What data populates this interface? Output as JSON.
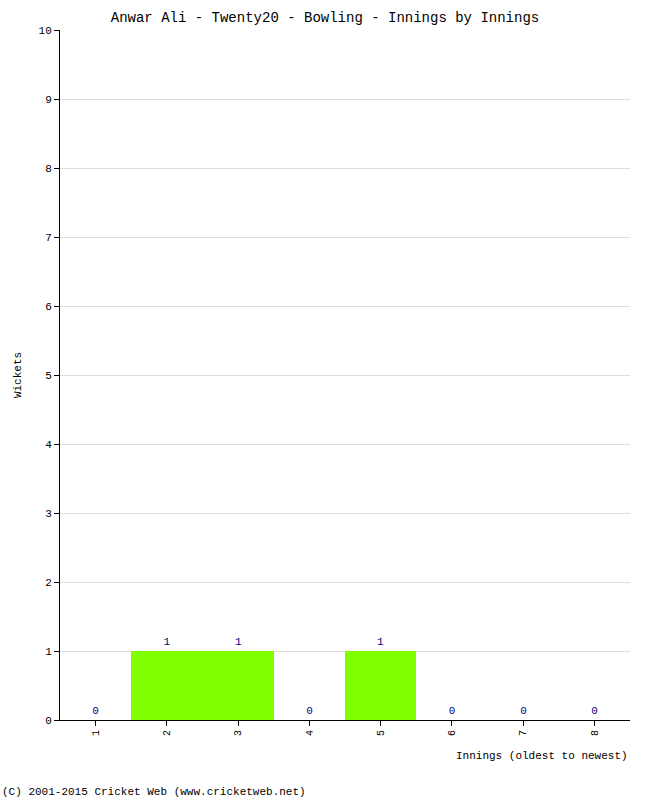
{
  "chart_data": {
    "type": "bar",
    "title": "Anwar Ali - Twenty20 - Bowling - Innings by Innings",
    "x_label": "Innings (oldest to newest)",
    "y_label": "Wickets",
    "categories": [
      "1",
      "2",
      "3",
      "4",
      "5",
      "6",
      "7",
      "8"
    ],
    "values": [
      0,
      1,
      1,
      0,
      1,
      0,
      0,
      0
    ],
    "color": "#80ff00",
    "ylim": [
      0,
      10
    ],
    "yticks": [
      0,
      1,
      2,
      3,
      4,
      5,
      6,
      7,
      8,
      9,
      10
    ],
    "grid": true,
    "data_labels": true,
    "annotations": [
      "(C) 2001-2015 Cricket Web (www.cricketweb.net)"
    ]
  }
}
